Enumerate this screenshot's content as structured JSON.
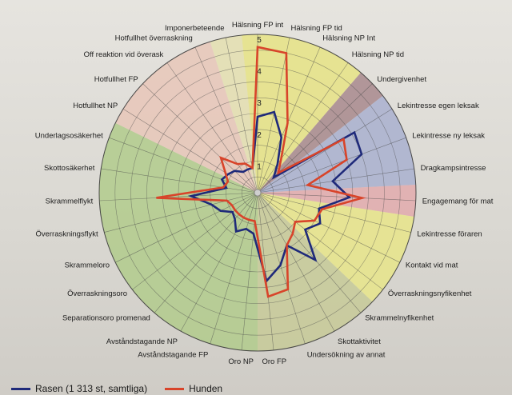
{
  "chart_data": {
    "type": "radar",
    "title": "",
    "scale": [
      0,
      5
    ],
    "tick_labels": [
      "1",
      "2",
      "3",
      "4",
      "5"
    ],
    "categories": [
      "Hälsning FP int",
      "Hälsning FP tid",
      "Hälsning NP Int",
      "Hälsning NP tid",
      "Undergivenhet",
      "Lekintresse egen leksak",
      "Lekintresse ny leksak",
      "Dragkampsintresse",
      "Engagemang för mat",
      "Lekintresse föraren",
      "Kontakt vid mat",
      "Överraskningsnyfikenhet",
      "Skrammelnyfikenhet",
      "Skottaktivitet",
      "Undersökning av annat",
      "Oro FP",
      "Oro NP",
      "Avståndstagande FP",
      "Avståndstagande NP",
      "Separationsoro promenad",
      "Överraskningsoro",
      "Skrammeloro",
      "Överraskningsflykt",
      "Skrammelflykt",
      "Skottosäkerhet",
      "Underlagsosäkerhet",
      "Hotfullhet NP",
      "Hotfullhet FP",
      "Off reaktion vid överask",
      "Hotfullhet överraskning",
      "Imponerbeteende"
    ],
    "sectors": [
      {
        "from": 0,
        "to": 3,
        "color": "#e6e385"
      },
      {
        "from": 4,
        "to": 4,
        "color": "#a88a8d"
      },
      {
        "from": 5,
        "to": 7,
        "color": "#a9b0cf"
      },
      {
        "from": 8,
        "to": 8,
        "color": "#e2aaad"
      },
      {
        "from": 9,
        "to": 11,
        "color": "#e8e589"
      },
      {
        "from": 12,
        "to": 15,
        "color": "#c7ca98"
      },
      {
        "from": 16,
        "to": 25,
        "color": "#b1cb8c"
      },
      {
        "from": 26,
        "to": 29,
        "color": "#e7c7b8"
      },
      {
        "from": 30,
        "to": 30,
        "color": "#e4dfb0"
      }
    ],
    "series": [
      {
        "name": "Rasen (1 313 st, samtliga)",
        "color": "#1f2a7a",
        "values": [
          2.4,
          2.6,
          1.9,
          1.1,
          0.7,
          3.6,
          3.5,
          2.4,
          2.9,
          2.0,
          2.2,
          1.9,
          2.8,
          1.9,
          2.4,
          2.8,
          1.3,
          1.2,
          1.4,
          1.1,
          1.0,
          1.3,
          1.5,
          2.1,
          1.0,
          1.2,
          1.1,
          1.0,
          0.8,
          0.8,
          0.8
        ]
      },
      {
        "name": "Hunden",
        "color": "#d8442a",
        "values": [
          4.6,
          4.5,
          2.4,
          1.3,
          0.9,
          3.2,
          3.0,
          1.6,
          3.3,
          2.1,
          2.0,
          1.5,
          1.7,
          1.9,
          3.2,
          3.3,
          0.9,
          0.9,
          0.9,
          0.9,
          0.9,
          0.9,
          1.0,
          3.2,
          1.1,
          1.0,
          1.2,
          1.6,
          1.1,
          1.0,
          0.8
        ]
      }
    ],
    "legend": {
      "position": "bottom-left"
    }
  }
}
